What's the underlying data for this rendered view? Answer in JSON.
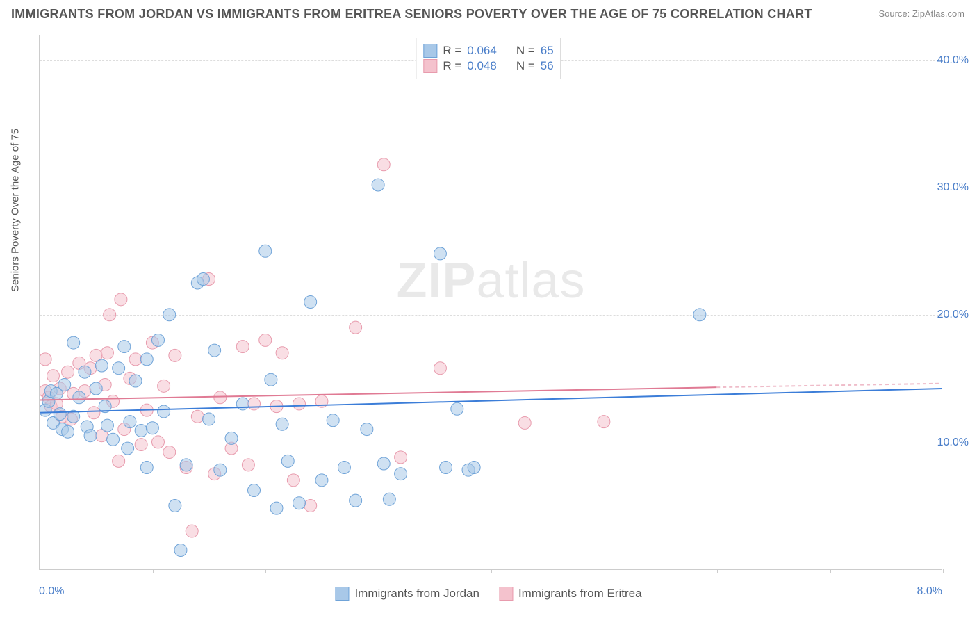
{
  "title": "IMMIGRANTS FROM JORDAN VS IMMIGRANTS FROM ERITREA SENIORS POVERTY OVER THE AGE OF 75 CORRELATION CHART",
  "source": "Source: ZipAtlas.com",
  "ylabel": "Seniors Poverty Over the Age of 75",
  "watermark_bold": "ZIP",
  "watermark_rest": "atlas",
  "chart": {
    "type": "scatter",
    "background_color": "#ffffff",
    "grid_color": "#dddddd",
    "axis_color": "#cccccc",
    "xlim": [
      0.0,
      8.0
    ],
    "ylim": [
      0.0,
      42.0
    ],
    "xtick_labels": {
      "left": "0.0%",
      "right": "8.0%"
    },
    "xtick_positions": [
      0,
      1,
      2,
      3,
      4,
      5,
      6,
      7,
      8
    ],
    "ytick_labels": [
      "10.0%",
      "20.0%",
      "30.0%",
      "40.0%"
    ],
    "ytick_positions": [
      10,
      20,
      30,
      40
    ],
    "tick_label_color": "#4a7ec9",
    "marker_radius": 9,
    "marker_opacity": 0.55,
    "line_width": 2,
    "series": [
      {
        "name": "Immigrants from Jordan",
        "fill": "#a8c8e8",
        "stroke": "#6fa3d8",
        "line_color": "#3b7dd8",
        "r_value": "0.064",
        "n_value": "65",
        "trend": {
          "x1": 0.0,
          "y1": 12.3,
          "x2": 8.0,
          "y2": 14.2
        },
        "points": [
          [
            0.05,
            12.5
          ],
          [
            0.08,
            13.2
          ],
          [
            0.1,
            14.0
          ],
          [
            0.12,
            11.5
          ],
          [
            0.15,
            13.8
          ],
          [
            0.18,
            12.2
          ],
          [
            0.2,
            11.0
          ],
          [
            0.22,
            14.5
          ],
          [
            0.25,
            10.8
          ],
          [
            0.3,
            12.0
          ],
          [
            0.35,
            13.5
          ],
          [
            0.4,
            15.5
          ],
          [
            0.42,
            11.2
          ],
          [
            0.45,
            10.5
          ],
          [
            0.5,
            14.2
          ],
          [
            0.55,
            16.0
          ],
          [
            0.58,
            12.8
          ],
          [
            0.6,
            11.3
          ],
          [
            0.65,
            10.2
          ],
          [
            0.7,
            15.8
          ],
          [
            0.75,
            17.5
          ],
          [
            0.78,
            9.5
          ],
          [
            0.8,
            11.6
          ],
          [
            0.85,
            14.8
          ],
          [
            0.9,
            10.9
          ],
          [
            0.95,
            16.5
          ],
          [
            1.0,
            11.1
          ],
          [
            1.05,
            18.0
          ],
          [
            1.1,
            12.4
          ],
          [
            1.15,
            20.0
          ],
          [
            1.2,
            5.0
          ],
          [
            1.25,
            1.5
          ],
          [
            1.3,
            8.2
          ],
          [
            1.4,
            22.5
          ],
          [
            1.45,
            22.8
          ],
          [
            1.5,
            11.8
          ],
          [
            1.55,
            17.2
          ],
          [
            1.6,
            7.8
          ],
          [
            1.7,
            10.3
          ],
          [
            1.8,
            13.0
          ],
          [
            1.9,
            6.2
          ],
          [
            2.0,
            25.0
          ],
          [
            2.05,
            14.9
          ],
          [
            2.1,
            4.8
          ],
          [
            2.15,
            11.4
          ],
          [
            2.2,
            8.5
          ],
          [
            2.3,
            5.2
          ],
          [
            2.4,
            21.0
          ],
          [
            2.5,
            7.0
          ],
          [
            2.6,
            11.7
          ],
          [
            2.7,
            8.0
          ],
          [
            2.8,
            5.4
          ],
          [
            2.9,
            11.0
          ],
          [
            3.0,
            30.2
          ],
          [
            3.05,
            8.3
          ],
          [
            3.1,
            5.5
          ],
          [
            3.2,
            7.5
          ],
          [
            3.55,
            24.8
          ],
          [
            3.6,
            8.0
          ],
          [
            3.7,
            12.6
          ],
          [
            3.8,
            7.8
          ],
          [
            3.85,
            8.0
          ],
          [
            5.85,
            20.0
          ],
          [
            0.3,
            17.8
          ],
          [
            0.95,
            8.0
          ]
        ]
      },
      {
        "name": "Immigrants from Eritrea",
        "fill": "#f4c2cd",
        "stroke": "#e89bad",
        "line_color": "#e07a94",
        "r_value": "0.048",
        "n_value": "56",
        "trend": {
          "x1": 0.0,
          "y1": 13.3,
          "x2": 6.0,
          "y2": 14.3
        },
        "trend_dashed_extension": {
          "x1": 6.0,
          "y1": 14.3,
          "x2": 8.0,
          "y2": 14.6
        },
        "points": [
          [
            0.05,
            14.0
          ],
          [
            0.08,
            13.5
          ],
          [
            0.1,
            12.8
          ],
          [
            0.12,
            15.2
          ],
          [
            0.15,
            13.0
          ],
          [
            0.18,
            14.2
          ],
          [
            0.2,
            12.0
          ],
          [
            0.25,
            15.5
          ],
          [
            0.28,
            11.8
          ],
          [
            0.3,
            13.8
          ],
          [
            0.35,
            16.2
          ],
          [
            0.4,
            14.0
          ],
          [
            0.45,
            15.8
          ],
          [
            0.48,
            12.3
          ],
          [
            0.5,
            16.8
          ],
          [
            0.55,
            10.5
          ],
          [
            0.58,
            14.5
          ],
          [
            0.6,
            17.0
          ],
          [
            0.62,
            20.0
          ],
          [
            0.65,
            13.2
          ],
          [
            0.7,
            8.5
          ],
          [
            0.72,
            21.2
          ],
          [
            0.75,
            11.0
          ],
          [
            0.8,
            15.0
          ],
          [
            0.85,
            16.5
          ],
          [
            0.9,
            9.8
          ],
          [
            0.95,
            12.5
          ],
          [
            1.0,
            17.8
          ],
          [
            1.05,
            10.0
          ],
          [
            1.1,
            14.4
          ],
          [
            1.15,
            9.2
          ],
          [
            1.2,
            16.8
          ],
          [
            1.3,
            8.0
          ],
          [
            1.35,
            3.0
          ],
          [
            1.4,
            12.0
          ],
          [
            1.5,
            22.8
          ],
          [
            1.55,
            7.5
          ],
          [
            1.6,
            13.5
          ],
          [
            1.7,
            9.5
          ],
          [
            1.8,
            17.5
          ],
          [
            1.85,
            8.2
          ],
          [
            1.9,
            13.0
          ],
          [
            2.0,
            18.0
          ],
          [
            2.1,
            12.8
          ],
          [
            2.15,
            17.0
          ],
          [
            2.25,
            7.0
          ],
          [
            2.3,
            13.0
          ],
          [
            2.4,
            5.0
          ],
          [
            2.5,
            13.2
          ],
          [
            2.8,
            19.0
          ],
          [
            3.05,
            31.8
          ],
          [
            3.2,
            8.8
          ],
          [
            3.55,
            15.8
          ],
          [
            4.3,
            11.5
          ],
          [
            5.0,
            11.6
          ],
          [
            0.05,
            16.5
          ]
        ]
      }
    ]
  },
  "stats_legend": {
    "r_label": "R =",
    "n_label": "N ="
  },
  "bottom_legend": {
    "items": [
      "Immigrants from Jordan",
      "Immigrants from Eritrea"
    ]
  }
}
